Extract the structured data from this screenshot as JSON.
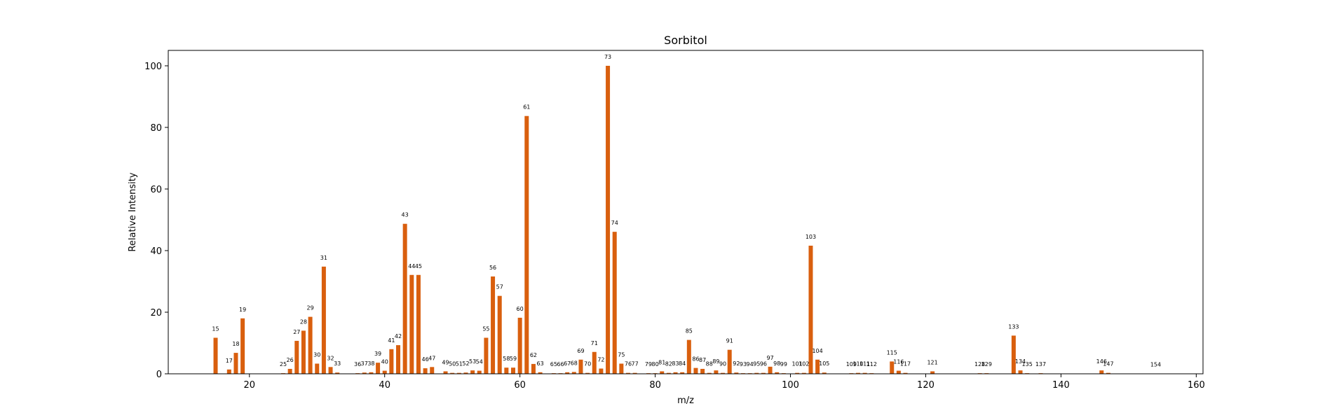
{
  "chart_data": {
    "type": "bar",
    "title": "Sorbitol",
    "xlabel": "m/z",
    "ylabel": "Relative Intensity",
    "xlim": [
      8,
      161
    ],
    "ylim": [
      0,
      105
    ],
    "xticks": [
      20,
      40,
      60,
      80,
      100,
      120,
      140,
      160
    ],
    "yticks": [
      0,
      20,
      40,
      60,
      80,
      100
    ],
    "bar_color": "#d95f0e",
    "grid": false,
    "legend": "none",
    "points": [
      {
        "x": 15,
        "y": 11.7
      },
      {
        "x": 17,
        "y": 1.4
      },
      {
        "x": 18,
        "y": 6.8
      },
      {
        "x": 19,
        "y": 18.0
      },
      {
        "x": 25,
        "y": 0.2
      },
      {
        "x": 26,
        "y": 1.6
      },
      {
        "x": 27,
        "y": 10.7
      },
      {
        "x": 28,
        "y": 14.0
      },
      {
        "x": 29,
        "y": 18.5
      },
      {
        "x": 30,
        "y": 3.3
      },
      {
        "x": 31,
        "y": 34.8
      },
      {
        "x": 32,
        "y": 2.2
      },
      {
        "x": 33,
        "y": 0.4
      },
      {
        "x": 36,
        "y": 0.2
      },
      {
        "x": 37,
        "y": 0.4
      },
      {
        "x": 38,
        "y": 0.5
      },
      {
        "x": 39,
        "y": 3.6
      },
      {
        "x": 40,
        "y": 1.0
      },
      {
        "x": 41,
        "y": 8.0
      },
      {
        "x": 42,
        "y": 9.3
      },
      {
        "x": 43,
        "y": 48.7
      },
      {
        "x": 44,
        "y": 32.1
      },
      {
        "x": 45,
        "y": 32.1
      },
      {
        "x": 46,
        "y": 1.8
      },
      {
        "x": 47,
        "y": 2.2
      },
      {
        "x": 49,
        "y": 0.8
      },
      {
        "x": 50,
        "y": 0.3
      },
      {
        "x": 51,
        "y": 0.3
      },
      {
        "x": 52,
        "y": 0.4
      },
      {
        "x": 53,
        "y": 1.1
      },
      {
        "x": 54,
        "y": 1.0
      },
      {
        "x": 55,
        "y": 11.7
      },
      {
        "x": 56,
        "y": 31.6
      },
      {
        "x": 57,
        "y": 25.3
      },
      {
        "x": 58,
        "y": 2.0
      },
      {
        "x": 59,
        "y": 2.0
      },
      {
        "x": 60,
        "y": 18.2
      },
      {
        "x": 61,
        "y": 83.7
      },
      {
        "x": 62,
        "y": 3.2
      },
      {
        "x": 63,
        "y": 0.5
      },
      {
        "x": 65,
        "y": 0.2
      },
      {
        "x": 66,
        "y": 0.2
      },
      {
        "x": 67,
        "y": 0.5
      },
      {
        "x": 68,
        "y": 0.6
      },
      {
        "x": 69,
        "y": 4.6
      },
      {
        "x": 70,
        "y": 0.3
      },
      {
        "x": 71,
        "y": 7.1
      },
      {
        "x": 72,
        "y": 1.7
      },
      {
        "x": 73,
        "y": 100
      },
      {
        "x": 74,
        "y": 46.1
      },
      {
        "x": 75,
        "y": 3.3
      },
      {
        "x": 76,
        "y": 0.3
      },
      {
        "x": 77,
        "y": 0.3
      },
      {
        "x": 79,
        "y": 0.2
      },
      {
        "x": 80,
        "y": 0.2
      },
      {
        "x": 81,
        "y": 0.8
      },
      {
        "x": 82,
        "y": 0.3
      },
      {
        "x": 83,
        "y": 0.5
      },
      {
        "x": 84,
        "y": 0.5
      },
      {
        "x": 85,
        "y": 11.0
      },
      {
        "x": 86,
        "y": 1.9
      },
      {
        "x": 87,
        "y": 1.6
      },
      {
        "x": 88,
        "y": 0.3
      },
      {
        "x": 89,
        "y": 1.1
      },
      {
        "x": 90,
        "y": 0.3
      },
      {
        "x": 91,
        "y": 7.8
      },
      {
        "x": 92,
        "y": 0.4
      },
      {
        "x": 93,
        "y": 0.2
      },
      {
        "x": 94,
        "y": 0.2
      },
      {
        "x": 95,
        "y": 0.3
      },
      {
        "x": 96,
        "y": 0.3
      },
      {
        "x": 97,
        "y": 2.3
      },
      {
        "x": 98,
        "y": 0.5
      },
      {
        "x": 99,
        "y": 0.2
      },
      {
        "x": 101,
        "y": 0.3
      },
      {
        "x": 102,
        "y": 0.3
      },
      {
        "x": 103,
        "y": 41.6
      },
      {
        "x": 104,
        "y": 4.6
      },
      {
        "x": 105,
        "y": 0.4
      },
      {
        "x": 109,
        "y": 0.2
      },
      {
        "x": 110,
        "y": 0.3
      },
      {
        "x": 111,
        "y": 0.3
      },
      {
        "x": 112,
        "y": 0.2
      },
      {
        "x": 115,
        "y": 4.0
      },
      {
        "x": 116,
        "y": 1.0
      },
      {
        "x": 117,
        "y": 0.3
      },
      {
        "x": 121,
        "y": 0.8
      },
      {
        "x": 128,
        "y": 0.2
      },
      {
        "x": 129,
        "y": 0.2
      },
      {
        "x": 133,
        "y": 12.4
      },
      {
        "x": 134,
        "y": 1.1
      },
      {
        "x": 135,
        "y": 0.2
      },
      {
        "x": 137,
        "y": 0.2
      },
      {
        "x": 146,
        "y": 1.1
      },
      {
        "x": 147,
        "y": 0.3
      },
      {
        "x": 154,
        "y": 0.1
      }
    ]
  }
}
